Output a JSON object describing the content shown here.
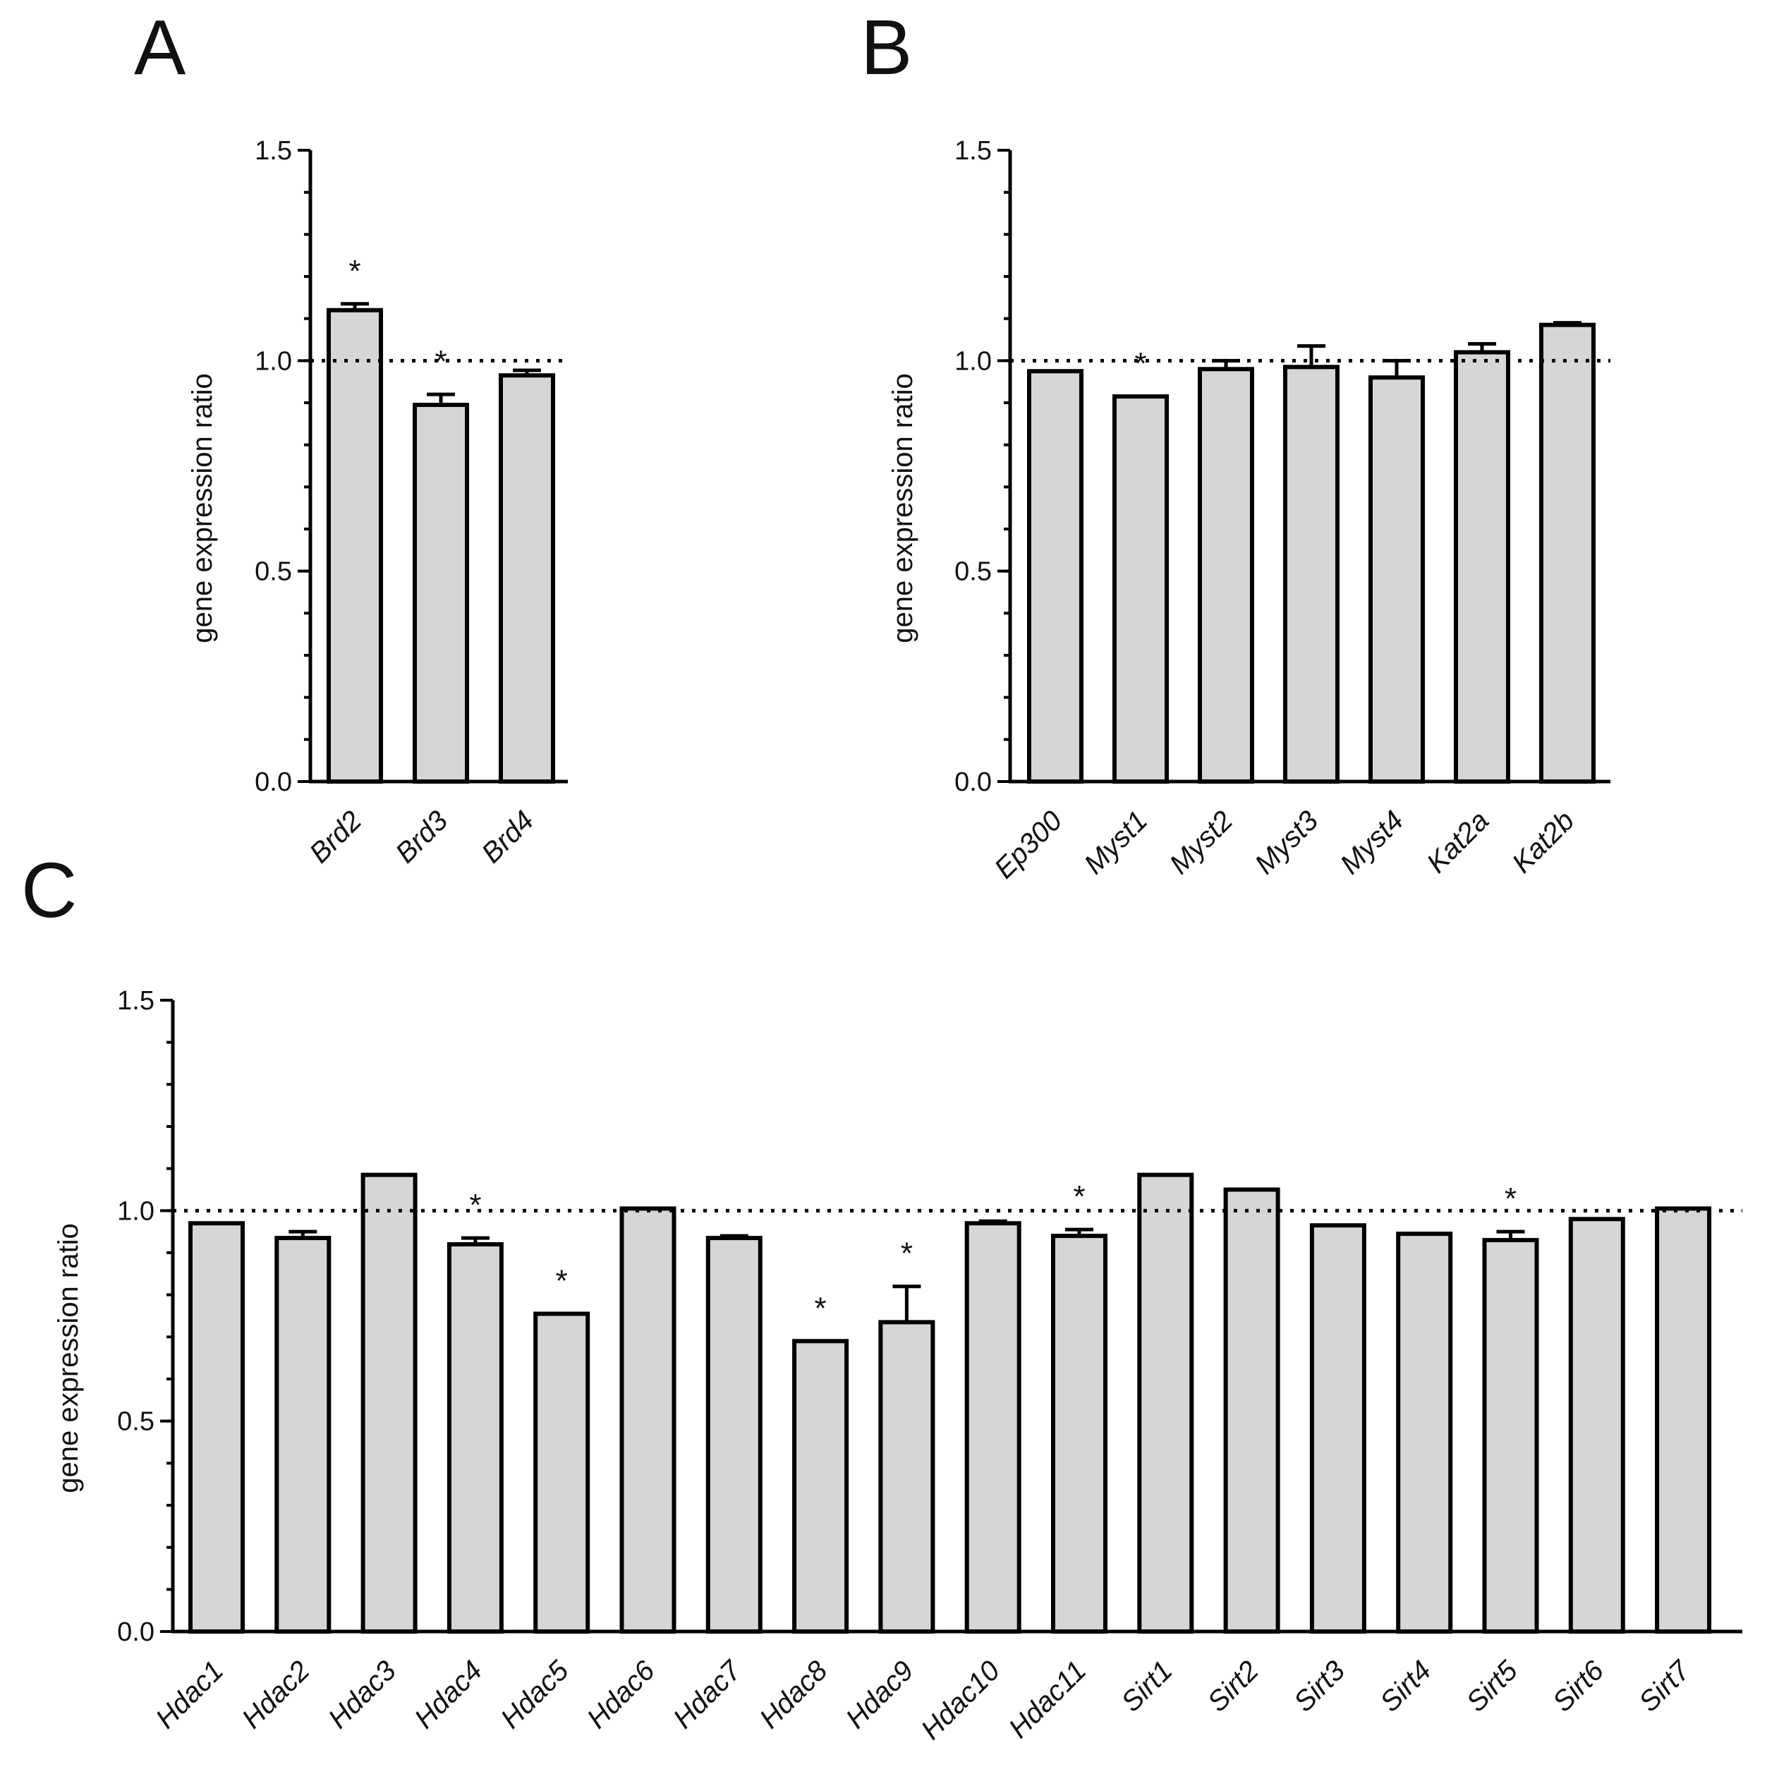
{
  "chart_data": [
    {
      "panel": "A",
      "type": "bar",
      "ylabel": "gene expression ratio",
      "ylim": [
        0,
        1.5
      ],
      "yticks": [
        "0.0",
        "0.5",
        "1.0",
        "1.5"
      ],
      "reference_line": 1.0,
      "categories": [
        "Brd2",
        "Brd3",
        "Brd4"
      ],
      "values": [
        1.12,
        0.895,
        0.965
      ],
      "errors": [
        0.015,
        0.025,
        0.012
      ],
      "significant": [
        true,
        true,
        false
      ],
      "sig_marker": "*"
    },
    {
      "panel": "B",
      "type": "bar",
      "ylabel": "gene expression ratio",
      "ylim": [
        0,
        1.5
      ],
      "yticks": [
        "0.0",
        "0.5",
        "1.0",
        "1.5"
      ],
      "reference_line": 1.0,
      "categories": [
        "Ep300",
        "Myst1",
        "Myst2",
        "Myst3",
        "Myst4",
        "Kat2a",
        "Kat2b"
      ],
      "values": [
        0.975,
        0.915,
        0.98,
        0.985,
        0.96,
        1.02,
        1.085
      ],
      "errors": [
        0,
        0,
        0.02,
        0.05,
        0.04,
        0.02,
        0.005
      ],
      "significant": [
        false,
        true,
        false,
        false,
        false,
        false,
        false
      ],
      "sig_marker": "*"
    },
    {
      "panel": "C",
      "type": "bar",
      "ylabel": "gene expression ratio",
      "ylim": [
        0,
        1.5
      ],
      "yticks": [
        "0.0",
        "0.5",
        "1.0",
        "1.5"
      ],
      "reference_line": 1.0,
      "categories": [
        "Hdac1",
        "Hdac2",
        "Hdac3",
        "Hdac4",
        "Hdac5",
        "Hdac6",
        "Hdac7",
        "Hdac8",
        "Hdac9",
        "Hdac10",
        "Hdac11",
        "Sirt1",
        "Sirt2",
        "Sirt3",
        "Sirt4",
        "Sirt5",
        "Sirt6",
        "Sirt7"
      ],
      "values": [
        0.97,
        0.935,
        1.085,
        0.92,
        0.755,
        1.005,
        0.935,
        0.69,
        0.735,
        0.97,
        0.94,
        1.085,
        1.05,
        0.965,
        0.945,
        0.93,
        0.98,
        1.005
      ],
      "errors": [
        0,
        0.015,
        0,
        0.015,
        0,
        0,
        0.005,
        0,
        0.085,
        0.005,
        0.015,
        0,
        0,
        0,
        0,
        0.02,
        0,
        0
      ],
      "significant": [
        false,
        false,
        false,
        true,
        true,
        false,
        false,
        true,
        true,
        false,
        true,
        false,
        false,
        false,
        false,
        true,
        false,
        false
      ],
      "sig_marker": "*"
    }
  ]
}
